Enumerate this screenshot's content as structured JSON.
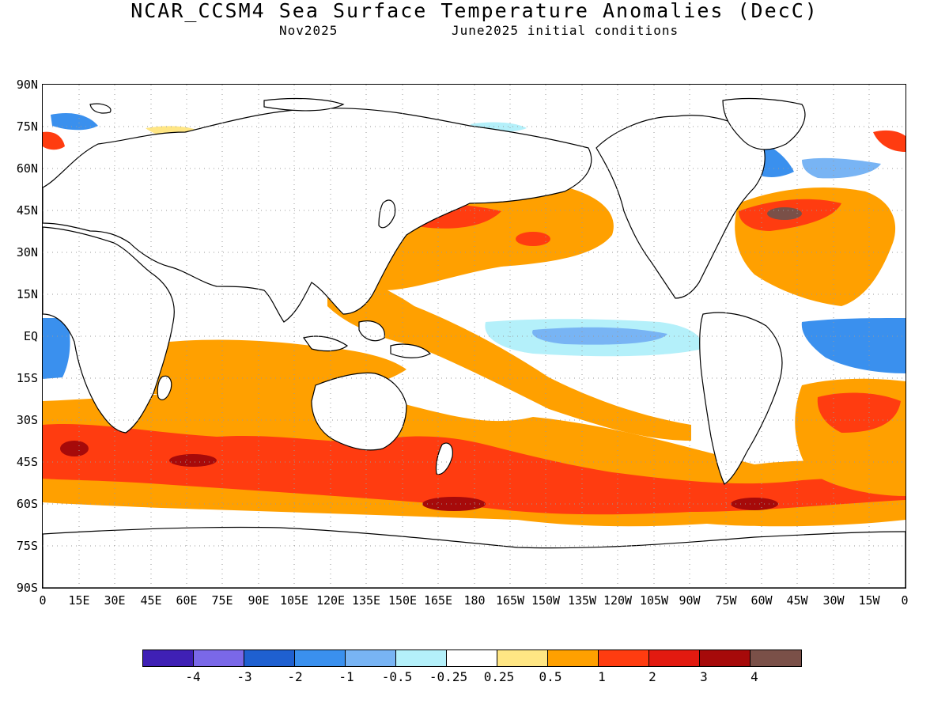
{
  "header": {
    "title": "NCAR_CCSM4 Sea Surface Temperature Anomalies (DecC)",
    "target_month": "Nov2025",
    "init_conditions": "June2025 initial conditions"
  },
  "axes": {
    "lat_labels": [
      "90N",
      "75N",
      "60N",
      "45N",
      "30N",
      "15N",
      "EQ",
      "15S",
      "30S",
      "45S",
      "60S",
      "75S",
      "90S"
    ],
    "lon_labels": [
      "0",
      "15E",
      "30E",
      "45E",
      "60E",
      "75E",
      "90E",
      "105E",
      "120E",
      "135E",
      "150E",
      "165E",
      "180",
      "165W",
      "150W",
      "135W",
      "120W",
      "105W",
      "90W",
      "75W",
      "60W",
      "45W",
      "30W",
      "15W",
      "0"
    ]
  },
  "colorbar": {
    "colors": [
      "#3f20b5",
      "#7a68e8",
      "#1f60d0",
      "#3a90ee",
      "#78b4f4",
      "#b4f0fa",
      "#ffffff",
      "#ffe684",
      "#ffa000",
      "#ff3c10",
      "#e21a10",
      "#a60a0a",
      "#7a5048"
    ],
    "labels": [
      "-4",
      "-3",
      "-2",
      "-1",
      "-0.5",
      "-0.25",
      "0.25",
      "0.5",
      "1",
      "2",
      "3",
      "4"
    ]
  },
  "colors": {
    "land": "#ffffff",
    "coast": "#000000",
    "grid": "#9a9a9a"
  }
}
